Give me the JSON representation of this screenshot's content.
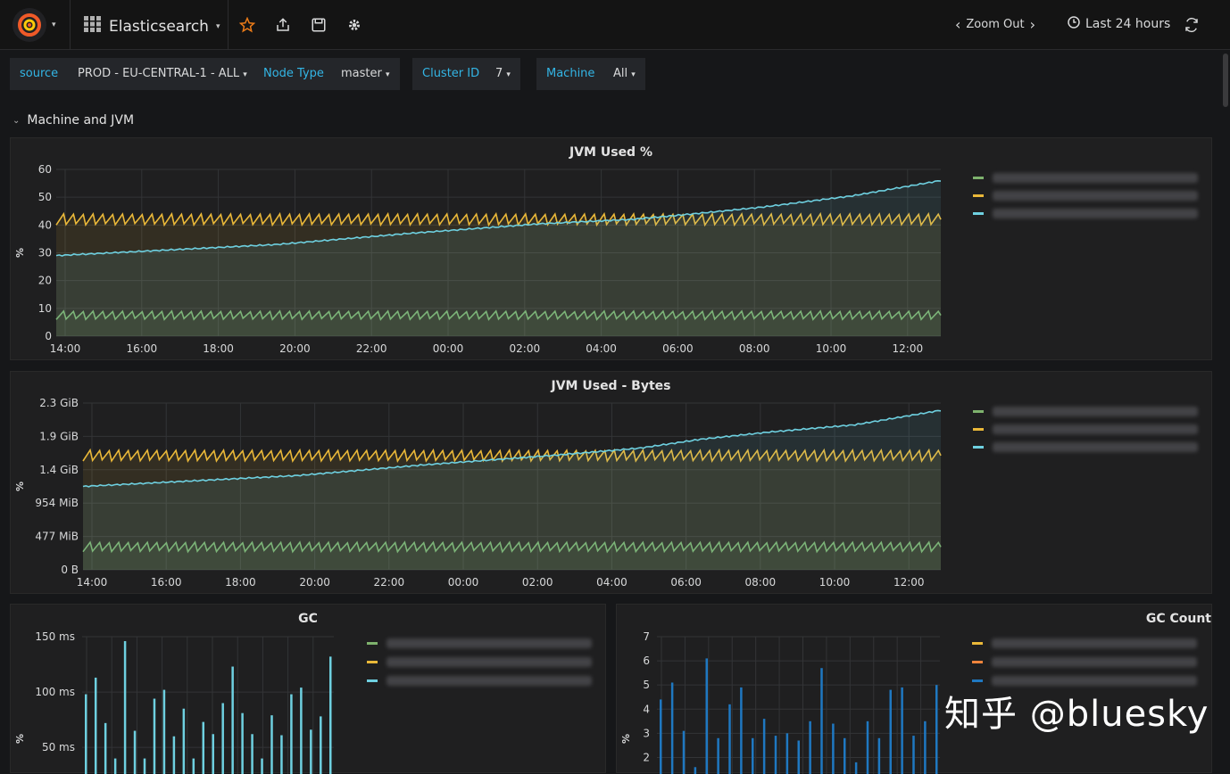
{
  "topbar": {
    "dashboard_title": "Elasticsearch",
    "zoom_out": "Zoom Out",
    "time_range": "Last 24 hours"
  },
  "variables": [
    {
      "label": "source",
      "value": "PROD - EU-CENTRAL-1 - ALL"
    },
    {
      "label": "Node Type",
      "value": "master"
    },
    {
      "label": "Cluster ID",
      "value": "7"
    },
    {
      "label": "Machine",
      "value": "All"
    }
  ],
  "row": {
    "title": "Machine and JVM"
  },
  "colors": {
    "green": "#7eb26d",
    "yellow": "#eab839",
    "cyan": "#6ed0e0",
    "orange": "#ef843c",
    "blue": "#1f78c1",
    "accent": "#33b5e5"
  },
  "panels": {
    "jvm_pct": {
      "title": "JVM Used %",
      "ylabel": "%"
    },
    "jvm_bytes": {
      "title": "JVM Used - Bytes",
      "ylabel": "%"
    },
    "gc": {
      "title": "GC",
      "ylabel": "%"
    },
    "gc_count": {
      "title": "GC Count",
      "ylabel": "%"
    }
  },
  "watermark": "知乎 @bluesky",
  "chart_data": [
    {
      "type": "line",
      "title": "JVM Used %",
      "ylabel": "%",
      "ylim": [
        0,
        60
      ],
      "yticks": [
        "0",
        "10",
        "20",
        "30",
        "40",
        "50",
        "60"
      ],
      "xticks": [
        "14:00",
        "16:00",
        "18:00",
        "20:00",
        "22:00",
        "00:00",
        "02:00",
        "04:00",
        "06:00",
        "08:00",
        "10:00",
        "12:00"
      ],
      "series": [
        {
          "color": "yellow",
          "shape": "sawtooth",
          "low": 40,
          "high": 44
        },
        {
          "color": "green",
          "shape": "sawtooth",
          "low": 6,
          "high": 9
        },
        {
          "color": "cyan",
          "shape": "trend",
          "points": [
            [
              0,
              29
            ],
            [
              0.25,
              33
            ],
            [
              0.4,
              37
            ],
            [
              0.55,
              40.5
            ],
            [
              0.65,
              42
            ],
            [
              0.72,
              44
            ],
            [
              0.8,
              46.5
            ],
            [
              0.9,
              50.5
            ],
            [
              1.0,
              56
            ]
          ]
        }
      ],
      "grid": true,
      "legend": "right"
    },
    {
      "type": "line",
      "title": "JVM Used - Bytes",
      "ylabel": "%",
      "ylim": [
        0,
        2.3
      ],
      "yticks": [
        "0 B",
        "477 MiB",
        "954 MiB",
        "1.4 GiB",
        "1.9 GiB",
        "2.3 GiB"
      ],
      "xticks": [
        "14:00",
        "16:00",
        "18:00",
        "20:00",
        "22:00",
        "00:00",
        "02:00",
        "04:00",
        "06:00",
        "08:00",
        "10:00",
        "12:00"
      ],
      "series": [
        {
          "color": "yellow",
          "shape": "sawtooth",
          "low": 1.5,
          "high": 1.65
        },
        {
          "color": "green",
          "shape": "sawtooth",
          "low": 0.25,
          "high": 0.38
        },
        {
          "color": "cyan",
          "shape": "trend",
          "points": [
            [
              0,
              1.15
            ],
            [
              0.25,
              1.3
            ],
            [
              0.4,
              1.45
            ],
            [
              0.55,
              1.58
            ],
            [
              0.65,
              1.68
            ],
            [
              0.72,
              1.8
            ],
            [
              0.8,
              1.9
            ],
            [
              0.9,
              2.0
            ],
            [
              1.0,
              2.2
            ]
          ]
        }
      ],
      "grid": true,
      "legend": "right"
    },
    {
      "type": "bar",
      "title": "GC",
      "ylabel": "%",
      "yticks": [
        "50 ms",
        "100 ms",
        "150 ms"
      ],
      "ylim": [
        30,
        150
      ],
      "values": [
        98,
        113,
        72,
        40,
        146,
        65,
        40,
        94,
        102,
        60,
        85,
        40,
        73,
        62,
        90,
        123,
        81,
        62,
        40,
        79,
        61,
        98,
        104,
        66,
        78,
        132
      ],
      "legend": "right"
    },
    {
      "type": "bar",
      "title": "GC Count",
      "ylabel": "%",
      "yticks": [
        "2",
        "3",
        "4",
        "5",
        "6",
        "7"
      ],
      "ylim": [
        1.5,
        7
      ],
      "values": [
        4.4,
        5.1,
        3.1,
        1.6,
        6.1,
        2.8,
        4.2,
        4.9,
        2.8,
        3.6,
        2.9,
        3.0,
        2.7,
        3.5,
        5.7,
        3.4,
        2.8,
        1.8,
        3.5,
        2.8,
        4.8,
        4.9,
        2.9,
        3.5,
        5.0
      ],
      "legend": "right"
    }
  ]
}
